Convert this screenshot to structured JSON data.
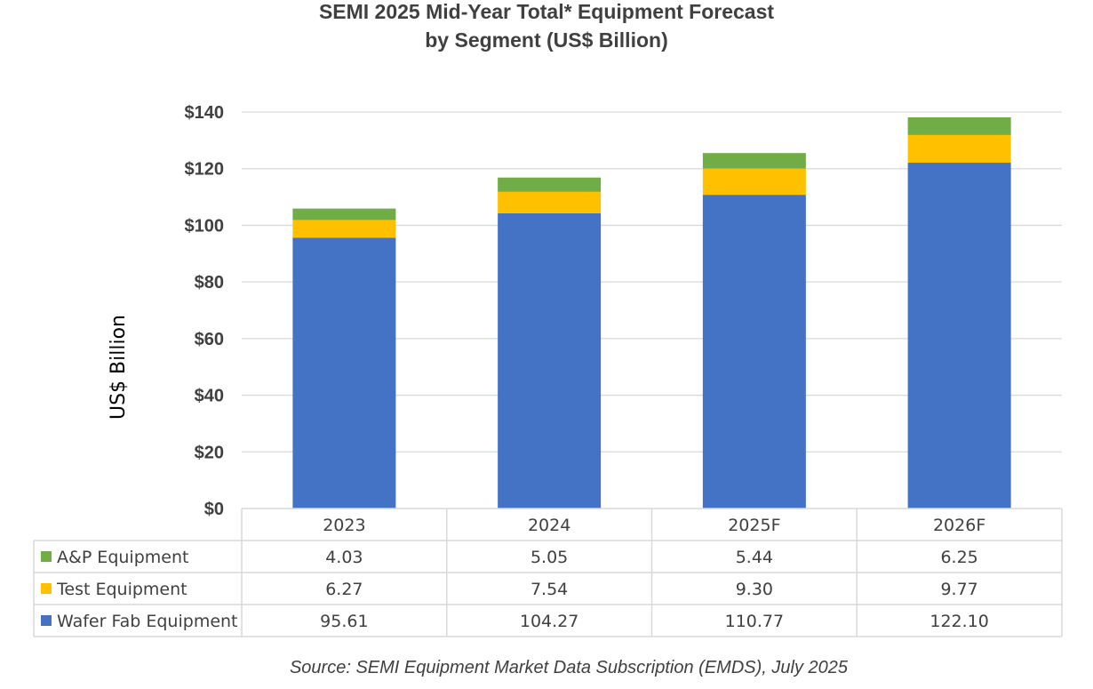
{
  "chart_data": {
    "type": "bar",
    "stacked": true,
    "title": "SEMI 2025 Mid-Year Total* Equipment Forecast",
    "subtitle": "by Segment (US$ Billion)",
    "xlabel": "",
    "ylabel": "US$ Billion",
    "ylim": [
      0,
      140
    ],
    "yticks": [
      0,
      20,
      40,
      60,
      80,
      100,
      120,
      140
    ],
    "ytick_labels": [
      "$0",
      "$20",
      "$40",
      "$60",
      "$80",
      "$100",
      "$120",
      "$140"
    ],
    "grid": true,
    "categories": [
      "2023",
      "2024",
      "2025F",
      "2026F"
    ],
    "series": [
      {
        "name": "Wafer Fab Equipment",
        "color": "#4472C4",
        "values": [
          95.61,
          104.27,
          110.77,
          122.1
        ],
        "labels": [
          "95.61",
          "104.27",
          "110.77",
          "122.10"
        ]
      },
      {
        "name": "Test Equipment",
        "color": "#FFC000",
        "values": [
          6.27,
          7.54,
          9.3,
          9.77
        ],
        "labels": [
          "6.27",
          "7.54",
          "9.30",
          "9.77"
        ]
      },
      {
        "name": "A&P Equipment",
        "color": "#70AD47",
        "values": [
          4.03,
          5.05,
          5.44,
          6.25
        ],
        "labels": [
          "4.03",
          "5.05",
          "5.44",
          "6.25"
        ]
      }
    ],
    "table_row_order": [
      "A&P Equipment",
      "Test Equipment",
      "Wafer Fab Equipment"
    ],
    "source": "Source: SEMI Equipment Market Data Subscription (EMDS), July 2025"
  }
}
